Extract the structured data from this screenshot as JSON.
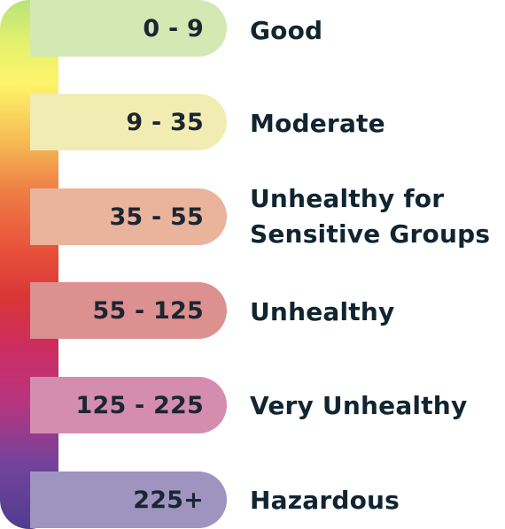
{
  "scale": {
    "gradient_colors": [
      "#b9e27c",
      "#fff36a",
      "#ef7e45",
      "#d93635",
      "#cc2d62",
      "#513c8f"
    ]
  },
  "categories": [
    {
      "range": "0 - 9",
      "label": "Good",
      "color": "#d4e8b4"
    },
    {
      "range": "9 - 35",
      "label": "Moderate",
      "color": "#f1edb2"
    },
    {
      "range": "35 - 55",
      "label_line1": "Unhealthy for",
      "label_line2": "Sensitive Groups",
      "color": "#e9b49b"
    },
    {
      "range": "55 - 125",
      "label": "Unhealthy",
      "color": "#dd9090"
    },
    {
      "range": "125 - 225",
      "label": "Very Unhealthy",
      "color": "#d48daf"
    },
    {
      "range": "225+",
      "label": "Hazardous",
      "color": "#9f94c0"
    }
  ]
}
